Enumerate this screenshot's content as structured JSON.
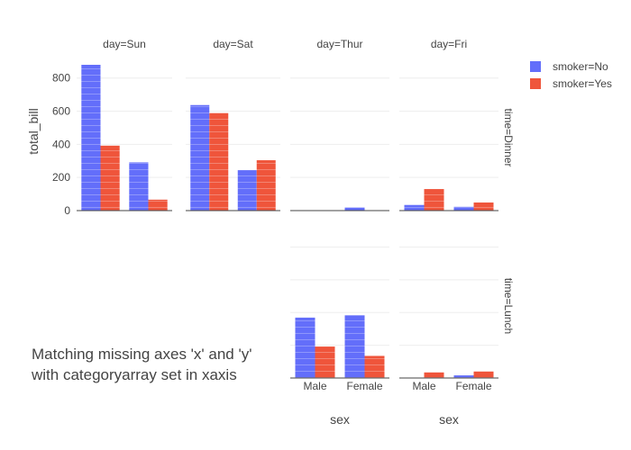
{
  "chart_data": {
    "type": "bar",
    "barmode": "group",
    "categories": [
      "Male",
      "Female"
    ],
    "columns": [
      "day=Sun",
      "day=Sat",
      "day=Thur",
      "day=Fri"
    ],
    "rows": [
      "time=Dinner",
      "time=Lunch"
    ],
    "legend": [
      {
        "name": "smoker=No",
        "color": "#636efa"
      },
      {
        "name": "smoker=Yes",
        "color": "#ef553b"
      }
    ],
    "series": [
      {
        "name": "smoker=No",
        "color": "#636efa"
      },
      {
        "name": "smoker=Yes",
        "color": "#ef553b"
      }
    ],
    "panels": [
      {
        "id": "sun-dinner",
        "day": "Sun",
        "time": "Dinner",
        "no": [
          880,
          291
        ],
        "yes": [
          392,
          66
        ]
      },
      {
        "id": "sat-dinner",
        "day": "Sat",
        "time": "Dinner",
        "no": [
          637,
          244
        ],
        "yes": [
          589,
          304
        ]
      },
      {
        "id": "thur-dinner",
        "day": "Thur",
        "time": "Dinner",
        "no": [
          0,
          18.8
        ],
        "yes": [
          0,
          0
        ]
      },
      {
        "id": "fri-dinner",
        "day": "Fri",
        "time": "Dinner",
        "no": [
          34,
          22.8
        ],
        "yes": [
          130,
          48.8
        ]
      },
      {
        "id": "thur-lunch",
        "day": "Thur",
        "time": "Lunch",
        "no": [
          369,
          383
        ],
        "yes": [
          192,
          135
        ]
      },
      {
        "id": "fri-lunch",
        "day": "Fri",
        "time": "Lunch",
        "no": [
          0,
          16
        ],
        "yes": [
          34,
          40
        ]
      }
    ],
    "ylim": [
      0,
      880
    ],
    "yticks": [
      0,
      200,
      400,
      600,
      800
    ],
    "ylabel": "total_bill",
    "xlabel": "sex",
    "grid": true,
    "legend_position": "top-right"
  },
  "annotation": {
    "line1": "Matching missing axes 'x' and 'y'",
    "line2": "with categoryarray set in xaxis"
  }
}
